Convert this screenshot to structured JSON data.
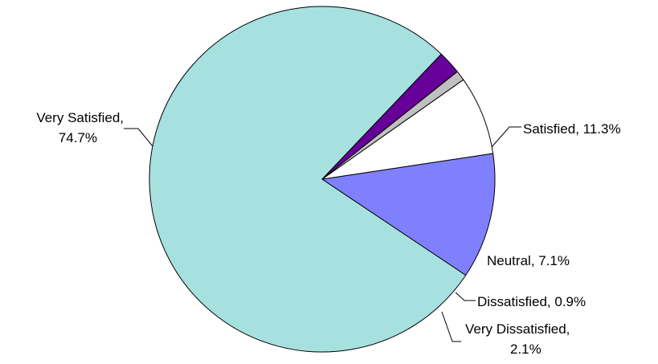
{
  "chart_data": {
    "type": "pie",
    "title": "",
    "slices": [
      {
        "label": "Very Satisfied",
        "value": 74.7,
        "display": [
          "Very Satisfied,",
          "74.7%"
        ],
        "color": "#A6E1E0"
      },
      {
        "label": "Satisfied",
        "value": 11.3,
        "display": [
          "Satisfied, 11.3%"
        ],
        "color": "#8080FF"
      },
      {
        "label": "Neutral",
        "value": 7.1,
        "display": [
          "Neutral, 7.1%"
        ],
        "color": "#FFFFFF"
      },
      {
        "label": "Dissatisfied",
        "value": 0.9,
        "display": [
          "Dissatisfied, 0.9%"
        ],
        "color": "#C0C0C0"
      },
      {
        "label": "Very Dissatisfied",
        "value": 2.1,
        "display": [
          "Very Dissatisfied,",
          "2.1%"
        ],
        "color": "#660099"
      }
    ],
    "legend": "none"
  }
}
